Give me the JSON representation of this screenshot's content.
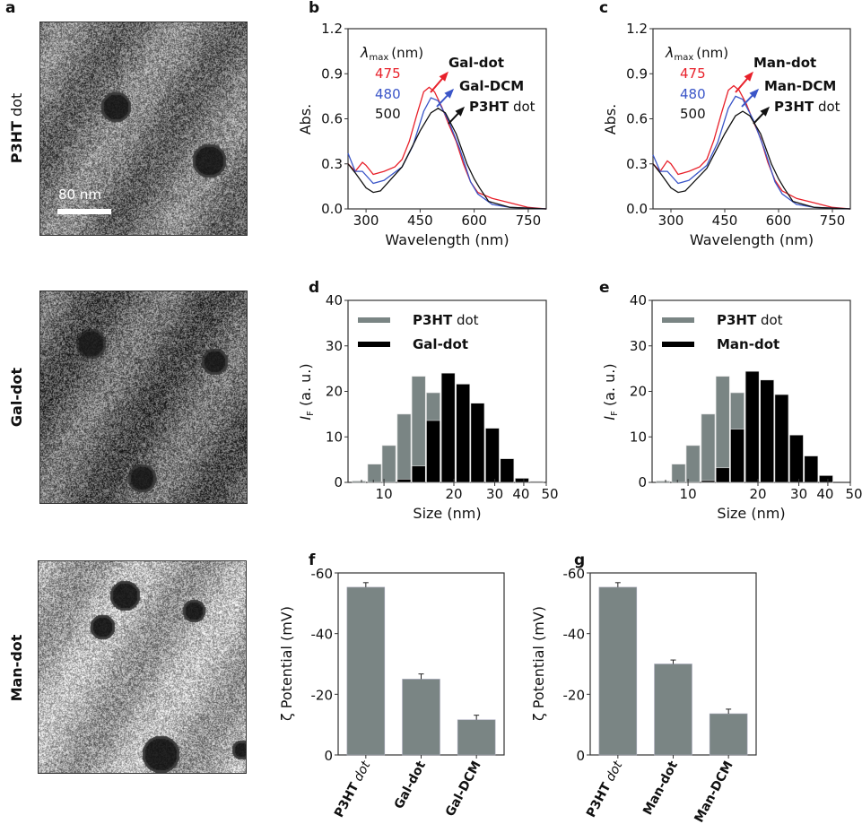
{
  "panel_letters": [
    "a",
    "b",
    "c",
    "d",
    "e",
    "f",
    "g"
  ],
  "tem_images": [
    {
      "label_bold": "P3HT",
      "label_rest": " dot",
      "scale_bar": "80 nm"
    },
    {
      "label_bold": "Gal-dot",
      "label_rest": ""
    },
    {
      "label_bold": "Man-dot",
      "label_rest": ""
    }
  ],
  "chart_data": [
    {
      "panel": "b",
      "type": "line",
      "xlabel": "Wavelength (nm)",
      "ylabel": "Abs.",
      "xlim": [
        250,
        800
      ],
      "ylim": [
        0,
        1.2
      ],
      "xticks": [
        300,
        450,
        600,
        750
      ],
      "xtick_labels": [
        "300",
        "450",
        "600",
        "750"
      ],
      "yticks": [
        0,
        0.3,
        0.6,
        0.9,
        1.2
      ],
      "ytick_labels": [
        "0.0",
        "0.3",
        "0.6",
        "0.9",
        "1.2"
      ],
      "legend_title": {
        "symbol": "λ",
        "sub": "max",
        "unit": "(nm)"
      },
      "series": [
        {
          "name_bold": "Gal-dot",
          "name_rest": "",
          "lambda_max": "475",
          "color": "#e8202a",
          "points": [
            [
              250,
              0.3
            ],
            [
              270,
              0.25
            ],
            [
              290,
              0.31
            ],
            [
              300,
              0.29
            ],
            [
              320,
              0.23
            ],
            [
              350,
              0.25
            ],
            [
              380,
              0.28
            ],
            [
              400,
              0.33
            ],
            [
              420,
              0.45
            ],
            [
              440,
              0.62
            ],
            [
              460,
              0.78
            ],
            [
              475,
              0.81
            ],
            [
              490,
              0.78
            ],
            [
              510,
              0.68
            ],
            [
              530,
              0.56
            ],
            [
              550,
              0.45
            ],
            [
              570,
              0.3
            ],
            [
              590,
              0.18
            ],
            [
              610,
              0.11
            ],
            [
              650,
              0.07
            ],
            [
              700,
              0.04
            ],
            [
              750,
              0.01
            ],
            [
              800,
              0.0
            ]
          ]
        },
        {
          "name_bold": "Gal-DCM",
          "name_rest": "",
          "lambda_max": "480",
          "color": "#3a55c8",
          "points": [
            [
              250,
              0.37
            ],
            [
              270,
              0.25
            ],
            [
              290,
              0.25
            ],
            [
              320,
              0.17
            ],
            [
              350,
              0.19
            ],
            [
              400,
              0.28
            ],
            [
              430,
              0.42
            ],
            [
              460,
              0.65
            ],
            [
              480,
              0.74
            ],
            [
              500,
              0.72
            ],
            [
              530,
              0.58
            ],
            [
              560,
              0.4
            ],
            [
              590,
              0.18
            ],
            [
              610,
              0.1
            ],
            [
              650,
              0.03
            ],
            [
              700,
              0.01
            ],
            [
              800,
              0.0
            ]
          ]
        },
        {
          "name_bold": "P3HT",
          "name_rest": " dot",
          "lambda_max": "500",
          "color": "#111111",
          "points": [
            [
              250,
              0.3
            ],
            [
              270,
              0.24
            ],
            [
              300,
              0.14
            ],
            [
              320,
              0.11
            ],
            [
              340,
              0.12
            ],
            [
              400,
              0.28
            ],
            [
              450,
              0.52
            ],
            [
              480,
              0.64
            ],
            [
              500,
              0.67
            ],
            [
              520,
              0.64
            ],
            [
              550,
              0.5
            ],
            [
              580,
              0.3
            ],
            [
              600,
              0.2
            ],
            [
              615,
              0.14
            ],
            [
              640,
              0.05
            ],
            [
              700,
              0.01
            ],
            [
              800,
              0.0
            ]
          ]
        }
      ]
    },
    {
      "panel": "c",
      "type": "line",
      "xlabel": "Wavelength (nm)",
      "ylabel": "Abs.",
      "xlim": [
        250,
        800
      ],
      "ylim": [
        0,
        1.2
      ],
      "xticks": [
        300,
        450,
        600,
        750
      ],
      "xtick_labels": [
        "300",
        "450",
        "600",
        "750"
      ],
      "yticks": [
        0,
        0.3,
        0.6,
        0.9,
        1.2
      ],
      "ytick_labels": [
        "0.0",
        "0.3",
        "0.6",
        "0.9",
        "1.2"
      ],
      "legend_title": {
        "symbol": "λ",
        "sub": "max",
        "unit": "(nm)"
      },
      "series": [
        {
          "name_bold": "Man-dot",
          "name_rest": "",
          "lambda_max": "475",
          "color": "#e8202a",
          "points": [
            [
              250,
              0.3
            ],
            [
              270,
              0.25
            ],
            [
              290,
              0.32
            ],
            [
              300,
              0.3
            ],
            [
              320,
              0.23
            ],
            [
              350,
              0.25
            ],
            [
              380,
              0.28
            ],
            [
              400,
              0.33
            ],
            [
              420,
              0.46
            ],
            [
              440,
              0.63
            ],
            [
              460,
              0.79
            ],
            [
              475,
              0.82
            ],
            [
              490,
              0.79
            ],
            [
              510,
              0.7
            ],
            [
              530,
              0.58
            ],
            [
              550,
              0.47
            ],
            [
              570,
              0.31
            ],
            [
              590,
              0.19
            ],
            [
              610,
              0.12
            ],
            [
              650,
              0.07
            ],
            [
              700,
              0.04
            ],
            [
              750,
              0.01
            ],
            [
              800,
              0.0
            ]
          ]
        },
        {
          "name_bold": "Man-DCM",
          "name_rest": "",
          "lambda_max": "480",
          "color": "#3a55c8",
          "points": [
            [
              250,
              0.36
            ],
            [
              270,
              0.25
            ],
            [
              290,
              0.25
            ],
            [
              320,
              0.17
            ],
            [
              350,
              0.19
            ],
            [
              400,
              0.29
            ],
            [
              430,
              0.44
            ],
            [
              460,
              0.67
            ],
            [
              480,
              0.75
            ],
            [
              500,
              0.73
            ],
            [
              530,
              0.59
            ],
            [
              560,
              0.4
            ],
            [
              590,
              0.18
            ],
            [
              610,
              0.1
            ],
            [
              650,
              0.03
            ],
            [
              700,
              0.01
            ],
            [
              800,
              0.0
            ]
          ]
        },
        {
          "name_bold": "P3HT",
          "name_rest": " dot",
          "lambda_max": "500",
          "color": "#111111",
          "points": [
            [
              250,
              0.3
            ],
            [
              270,
              0.24
            ],
            [
              300,
              0.14
            ],
            [
              320,
              0.11
            ],
            [
              340,
              0.12
            ],
            [
              400,
              0.27
            ],
            [
              450,
              0.5
            ],
            [
              480,
              0.62
            ],
            [
              500,
              0.65
            ],
            [
              520,
              0.62
            ],
            [
              550,
              0.5
            ],
            [
              580,
              0.3
            ],
            [
              600,
              0.2
            ],
            [
              615,
              0.14
            ],
            [
              640,
              0.05
            ],
            [
              700,
              0.01
            ],
            [
              800,
              0.0
            ]
          ]
        }
      ]
    },
    {
      "panel": "d",
      "type": "bar",
      "xscale": "log",
      "xlabel": "Size (nm)",
      "ylabel_italic": "I",
      "ylabel_sub": "F",
      "ylabel_rest": " (a. u.)",
      "xlim": [
        7,
        50
      ],
      "ylim": [
        0,
        40
      ],
      "xticks": [
        10,
        20,
        30,
        40,
        50
      ],
      "xtick_labels": [
        "10",
        "20",
        "30",
        "40",
        "50"
      ],
      "yticks": [
        0,
        10,
        20,
        30,
        40
      ],
      "ytick_labels": [
        "0",
        "10",
        "20",
        "30",
        "40"
      ],
      "legend": "top-left",
      "bin_centers": [
        7.8,
        9.1,
        10.5,
        12.2,
        14.1,
        16.3,
        18.9,
        21.9,
        25.3,
        29.3,
        33.9,
        39.3,
        45.5
      ],
      "series": [
        {
          "name_bold": "P3HT",
          "name_rest": " dot",
          "color": "#7a8584",
          "values": [
            0.3,
            4.0,
            8.1,
            15.0,
            23.3,
            19.7,
            0,
            0,
            0,
            0,
            0,
            0,
            0
          ]
        },
        {
          "name_bold": "Gal-dot",
          "name_rest": "",
          "color": "#000000",
          "values": [
            0,
            0,
            0,
            0.7,
            3.6,
            13.6,
            24.0,
            21.6,
            17.4,
            11.9,
            5.2,
            0.9,
            0.2
          ]
        }
      ]
    },
    {
      "panel": "e",
      "type": "bar",
      "xscale": "log",
      "xlabel": "Size (nm)",
      "ylabel_italic": "I",
      "ylabel_sub": "F",
      "ylabel_rest": " (a. u.)",
      "xlim": [
        7,
        50
      ],
      "ylim": [
        0,
        40
      ],
      "xticks": [
        10,
        20,
        30,
        40,
        50
      ],
      "xtick_labels": [
        "10",
        "20",
        "30",
        "40",
        "50"
      ],
      "yticks": [
        0,
        10,
        20,
        30,
        40
      ],
      "ytick_labels": [
        "0",
        "10",
        "20",
        "30",
        "40"
      ],
      "legend": "top-left",
      "bin_centers": [
        7.8,
        9.1,
        10.5,
        12.2,
        14.1,
        16.3,
        18.9,
        21.9,
        25.3,
        29.3,
        33.9,
        39.3,
        45.5
      ],
      "series": [
        {
          "name_bold": "P3HT",
          "name_rest": " dot",
          "color": "#7a8584",
          "values": [
            0.3,
            4.0,
            8.1,
            15.0,
            23.3,
            19.7,
            0,
            0,
            0,
            0,
            0,
            0,
            0
          ]
        },
        {
          "name_bold": "Man-dot",
          "name_rest": "",
          "color": "#000000",
          "values": [
            0,
            0,
            0,
            0.4,
            3.2,
            11.7,
            24.4,
            22.5,
            19.3,
            10.4,
            5.8,
            1.5,
            0
          ]
        }
      ]
    },
    {
      "panel": "f",
      "type": "bar",
      "ylabel": "ζ Potential (mV)",
      "ylim": [
        0,
        -60
      ],
      "yticks": [
        0,
        -20,
        -40,
        -60
      ],
      "ytick_labels": [
        "0",
        "-20",
        "-40",
        "-60"
      ],
      "bar_color": "#7a8584",
      "categories": [
        {
          "bold": "P3HT",
          "rest": " dot"
        },
        {
          "bold": "Gal-dot",
          "rest": ""
        },
        {
          "bold": "Gal-DCM",
          "rest": ""
        }
      ],
      "values": [
        -55.3,
        -25.0,
        -11.6
      ],
      "errors": [
        1.5,
        1.7,
        1.5
      ]
    },
    {
      "panel": "g",
      "type": "bar",
      "ylabel": "ζ Potential (mV)",
      "ylim": [
        0,
        -60
      ],
      "yticks": [
        0,
        -20,
        -40,
        -60
      ],
      "ytick_labels": [
        "0",
        "-20",
        "-40",
        "-60"
      ],
      "bar_color": "#7a8584",
      "categories": [
        {
          "bold": "P3HT",
          "rest": " dot"
        },
        {
          "bold": "Man-dot",
          "rest": ""
        },
        {
          "bold": "Man-DCM",
          "rest": ""
        }
      ],
      "values": [
        -55.3,
        -30.0,
        -13.6
      ],
      "errors": [
        1.5,
        1.3,
        1.5
      ]
    }
  ]
}
